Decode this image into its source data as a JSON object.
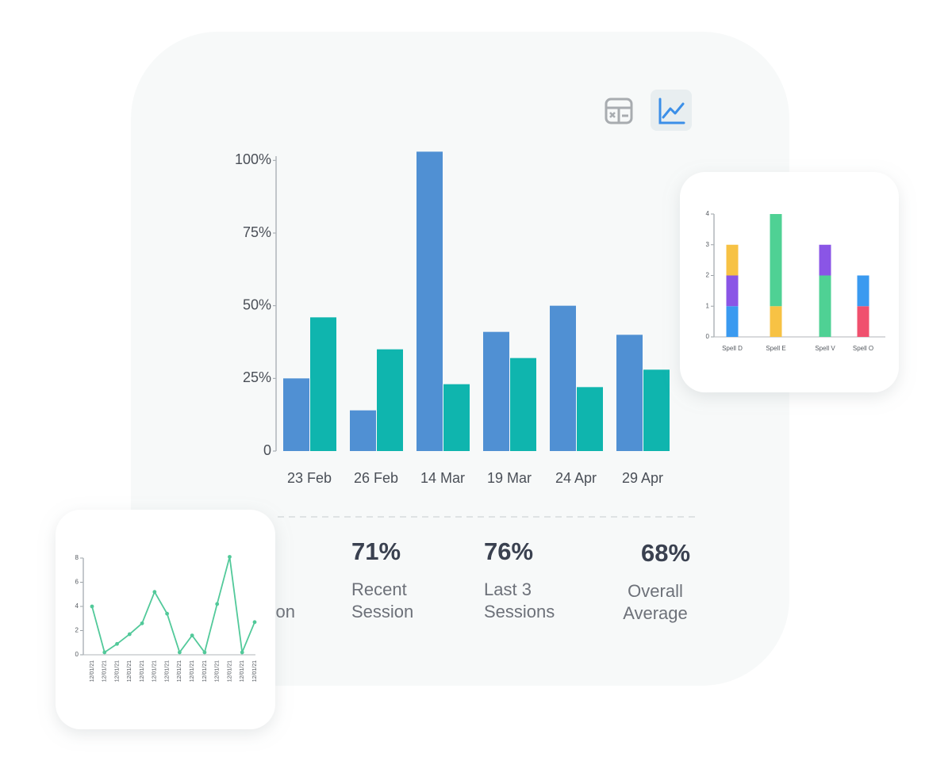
{
  "chart_data": [
    {
      "type": "bar",
      "categories": [
        "23  Feb",
        "26 Feb",
        "14  Mar",
        "19 Mar",
        "24 Apr",
        "29 Apr"
      ],
      "series": [
        {
          "color": "#5090d3",
          "values": [
            25,
            14,
            103,
            41,
            50,
            40
          ]
        },
        {
          "color": "#0fb5ae",
          "values": [
            46,
            35,
            23,
            32,
            22,
            28
          ]
        }
      ],
      "ylim": [
        0,
        105
      ],
      "yticks": [
        0,
        {
          "value": 25,
          "label": "25%"
        },
        {
          "value": 50,
          "label": "50%"
        },
        {
          "value": 75,
          "label": "75%"
        },
        {
          "value": 100,
          "label": "100%"
        }
      ]
    },
    {
      "type": "stacked_bar",
      "categories": [
        "Spell D",
        "Spell E",
        "Spell V",
        "Spell O"
      ],
      "series": [
        {
          "colors": [
            "#3a9af0",
            "#f7c244",
            "#4fd194",
            "#f0506e"
          ],
          "values": [
            1,
            1,
            2,
            1
          ]
        },
        {
          "colors": [
            "#8a55e6",
            "#4fd194",
            "#8a55e6",
            "#3a9af0"
          ],
          "values": [
            1,
            3,
            1,
            1
          ]
        },
        {
          "colors": [
            "#f7c244",
            null,
            null,
            null
          ],
          "values": [
            1,
            null,
            null,
            null
          ]
        }
      ],
      "ylim": [
        0,
        4
      ],
      "yticks": [
        0,
        1,
        2,
        3,
        4
      ]
    },
    {
      "type": "line",
      "categories": [
        "12/01/21",
        "12/01/21",
        "12/01/21",
        "12/01/21",
        "12/01/21",
        "12/01/21",
        "12/01/21",
        "12/01/21",
        "12/01/21",
        "12/01/21",
        "12/01/21",
        "12/01/21",
        "12/01/21",
        "12/01/21"
      ],
      "series": [
        {
          "color": "#52c99a",
          "values": [
            4.0,
            0.2,
            0.9,
            1.7,
            2.6,
            5.2,
            3.4,
            0.2,
            1.6,
            0.2,
            4.2,
            8.1,
            0.2,
            2.7
          ]
        }
      ],
      "ylim": [
        0,
        8
      ],
      "yticks": [
        0,
        2,
        4,
        6,
        8
      ]
    }
  ],
  "stats": [
    {
      "label": [
        "on"
      ]
    },
    {
      "value": "71%",
      "label": [
        "Recent",
        "Session"
      ]
    },
    {
      "value": "76%",
      "label": [
        "Last 3",
        "Sessions"
      ]
    },
    {
      "value": "68%",
      "label": [
        "Overall",
        "Average"
      ]
    }
  ]
}
